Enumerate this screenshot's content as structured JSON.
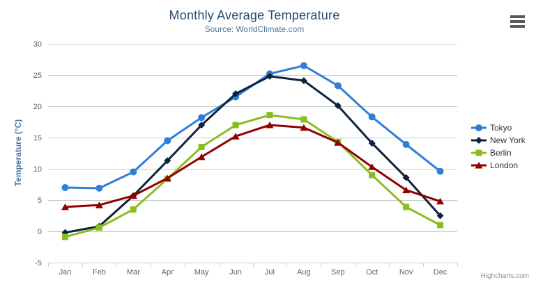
{
  "header": {
    "title": "Monthly Average Temperature",
    "subtitle": "Source: WorldClimate.com"
  },
  "credits": {
    "label": "Highcharts.com"
  },
  "context_menu": {
    "icon": "hamburger-icon"
  },
  "colors": {
    "title": "#274b6d",
    "subtitle": "#4d759e",
    "axis_title": "#4d759e",
    "axis_labels": "#606060",
    "axis_line": "#c0d0e0",
    "gridline": "#c8c8c8",
    "legend_text": "#333333",
    "credits_text": "#909090",
    "background": "#ffffff"
  },
  "chart_data": {
    "type": "line",
    "title": "Monthly Average Temperature",
    "subtitle": "Source: WorldClimate.com",
    "categories": [
      "Jan",
      "Feb",
      "Mar",
      "Apr",
      "May",
      "Jun",
      "Jul",
      "Aug",
      "Sep",
      "Oct",
      "Nov",
      "Dec"
    ],
    "series": [
      {
        "name": "Tokyo",
        "color": "#2f7ed8",
        "marker": "circle",
        "values": [
          7.0,
          6.9,
          9.5,
          14.5,
          18.2,
          21.5,
          25.2,
          26.5,
          23.3,
          18.3,
          13.9,
          9.6
        ]
      },
      {
        "name": "New York",
        "color": "#0d233a",
        "marker": "diamond",
        "values": [
          -0.2,
          0.8,
          5.7,
          11.3,
          17.0,
          22.0,
          24.8,
          24.1,
          20.1,
          14.1,
          8.6,
          2.5
        ]
      },
      {
        "name": "Berlin",
        "color": "#8bbc21",
        "marker": "square",
        "values": [
          -0.9,
          0.6,
          3.5,
          8.4,
          13.5,
          17.0,
          18.6,
          17.9,
          14.3,
          9.0,
          3.9,
          1.0
        ]
      },
      {
        "name": "London",
        "color": "#910000",
        "marker": "triangle",
        "values": [
          3.9,
          4.2,
          5.7,
          8.5,
          11.9,
          15.2,
          17.0,
          16.6,
          14.2,
          10.3,
          6.6,
          4.8
        ]
      }
    ],
    "xlabel": "",
    "ylabel": "Temperature (°C)",
    "ylim": [
      -5,
      30
    ],
    "ytick_step": 5,
    "yticks": [
      -5,
      0,
      5,
      10,
      15,
      20,
      25,
      30
    ],
    "grid": true,
    "legend_position": "right"
  }
}
